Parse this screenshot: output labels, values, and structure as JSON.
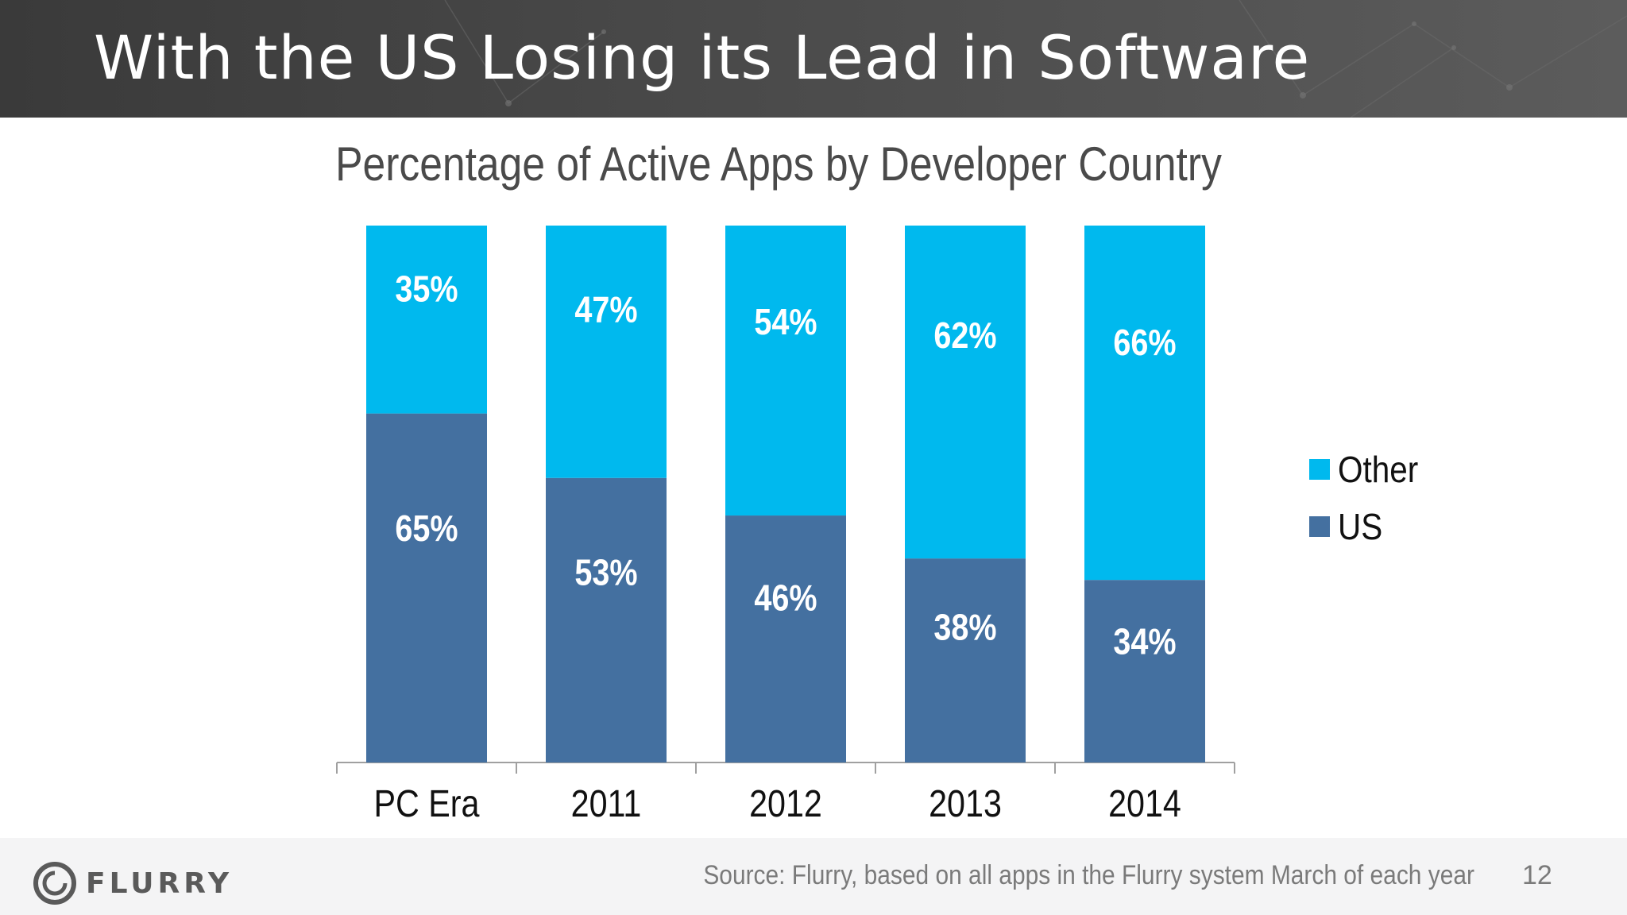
{
  "slide": {
    "title": "With the US Losing its Lead in Software",
    "source": "Source: Flurry, based on all apps in the Flurry system March of each year",
    "page_number": "12",
    "logo_text": "FLURRY"
  },
  "colors": {
    "header_bg": "#4a4a4a",
    "other": "#00b9ee",
    "us": "#4470a0",
    "footer_bg": "#f4f4f5"
  },
  "chart_data": {
    "type": "bar",
    "stacked": true,
    "title": "Percentage of Active Apps by Developer Country",
    "xlabel": "",
    "ylabel": "",
    "ylim": [
      0,
      100
    ],
    "categories": [
      "PC Era",
      "2011",
      "2012",
      "2013",
      "2014"
    ],
    "series": [
      {
        "name": "US",
        "color": "#4470a0",
        "values": [
          65,
          53,
          46,
          38,
          34
        ],
        "labels": [
          "65%",
          "53%",
          "46%",
          "38%",
          "34%"
        ]
      },
      {
        "name": "Other",
        "color": "#00b9ee",
        "values": [
          35,
          47,
          54,
          62,
          66
        ],
        "labels": [
          "35%",
          "47%",
          "54%",
          "62%",
          "66%"
        ]
      }
    ],
    "legend_position": "right",
    "grid": false
  }
}
